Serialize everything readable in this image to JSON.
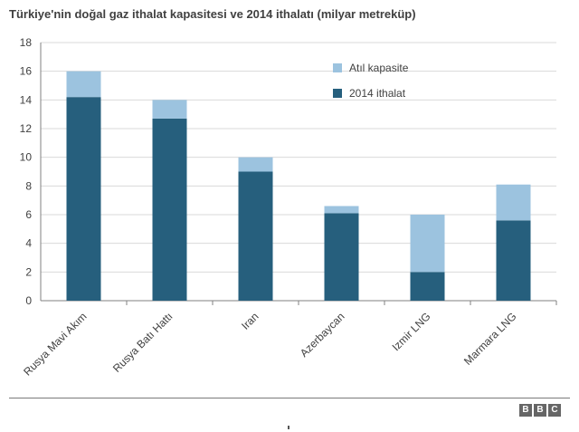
{
  "chart_data": {
    "type": "bar",
    "stacked": true,
    "title": "Türkiye'nin doğal gaz ithalat kapasitesi ve 2014 ithalatı (milyar metreküp)",
    "categories": [
      "Rusya Mavi Akım",
      "Rusya Batı Hattı",
      "Iran",
      "Azerbaycan",
      "Izmir LNG",
      "Marmara LNG"
    ],
    "series": [
      {
        "name": "2014 ithalat",
        "color": "#265f7d",
        "values": [
          14.2,
          12.7,
          9.0,
          6.1,
          2.0,
          5.6
        ]
      },
      {
        "name": "Atıl kapasite",
        "color": "#9cc3df",
        "values": [
          1.8,
          1.3,
          1.0,
          0.5,
          4.0,
          2.5
        ]
      }
    ],
    "legend_order": [
      "Atıl kapasite",
      "2014 ithalat"
    ],
    "ylim": [
      0,
      18
    ],
    "yticks": [
      0,
      2,
      4,
      6,
      8,
      10,
      12,
      14,
      16,
      18
    ],
    "xlabel": "",
    "ylabel": "",
    "grid": true,
    "legend_position": "top-right"
  },
  "footer": {
    "logo_letters": [
      "B",
      "B",
      "C"
    ]
  }
}
